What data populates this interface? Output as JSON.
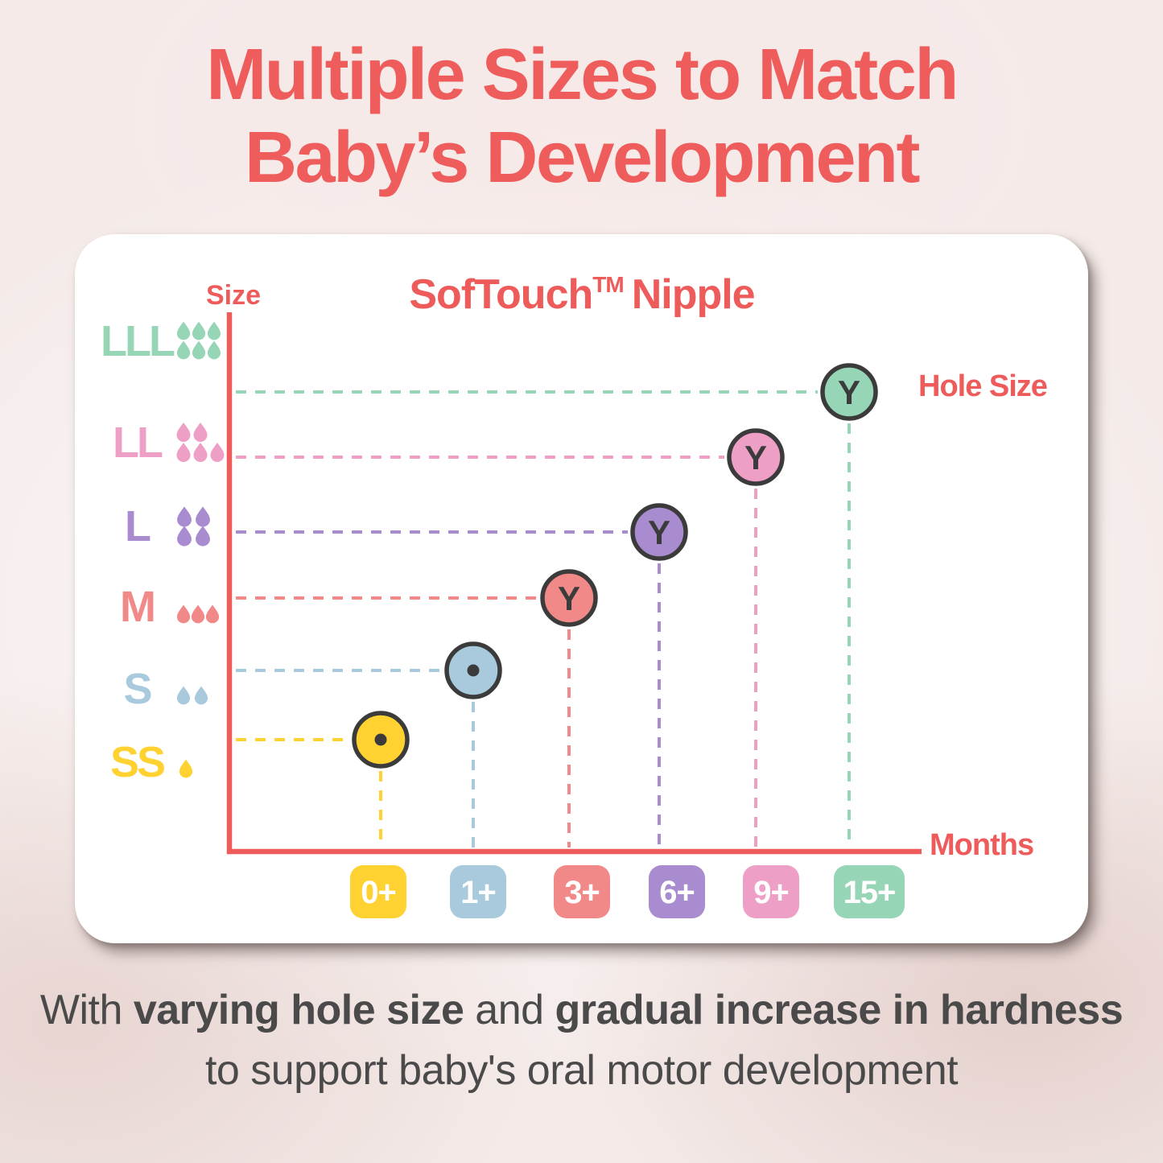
{
  "title": {
    "line1": "Multiple Sizes to Match",
    "line2": "Baby’s Development"
  },
  "footer": {
    "segments": [
      {
        "text": "With ",
        "bold": false
      },
      {
        "text": "varying hole size",
        "bold": true
      },
      {
        "text": " and ",
        "bold": false
      },
      {
        "text": "gradual increase in hardness",
        "bold": true
      },
      {
        "text": " to support baby's oral motor development",
        "bold": false
      }
    ]
  },
  "theme": {
    "accent_red": "#ee5b5b",
    "title_red": "#ef5c5c",
    "ink_dark": "#3b3b3b",
    "footer_text": "#4a4a4a",
    "card_bg": "#ffffff"
  },
  "chart_data": {
    "type": "scatter",
    "title": "SofTouch™ Nipple",
    "title_brand": "SofTouch",
    "title_tm": "TM",
    "title_rest": "Nipple",
    "ylabel": "Size",
    "xlabel": "Months",
    "right_axis_label": "Hole Size",
    "x_categories": [
      "0+",
      "1+",
      "3+",
      "6+",
      "9+",
      "15+"
    ],
    "y_categories": [
      "SS",
      "S",
      "M",
      "L",
      "LL",
      "LLL"
    ],
    "grid": "dashed-guides",
    "legend_position": "none",
    "points": [
      {
        "months": "0+",
        "size": "SS",
        "hole_mark": "dot",
        "flow_drops": 1,
        "color": "#ffd231"
      },
      {
        "months": "1+",
        "size": "S",
        "hole_mark": "dot",
        "flow_drops": 2,
        "color": "#a8cadc"
      },
      {
        "months": "3+",
        "size": "M",
        "hole_mark": "Y",
        "flow_drops": 3,
        "color": "#f18989"
      },
      {
        "months": "6+",
        "size": "L",
        "hole_mark": "Y",
        "flow_drops": 4,
        "color": "#a98ccf"
      },
      {
        "months": "9+",
        "size": "LL",
        "hole_mark": "Y",
        "flow_drops": 5,
        "color": "#ee9fc5"
      },
      {
        "months": "15+",
        "size": "LLL",
        "hole_mark": "Y",
        "flow_drops": 6,
        "color": "#96d5b6"
      }
    ]
  }
}
